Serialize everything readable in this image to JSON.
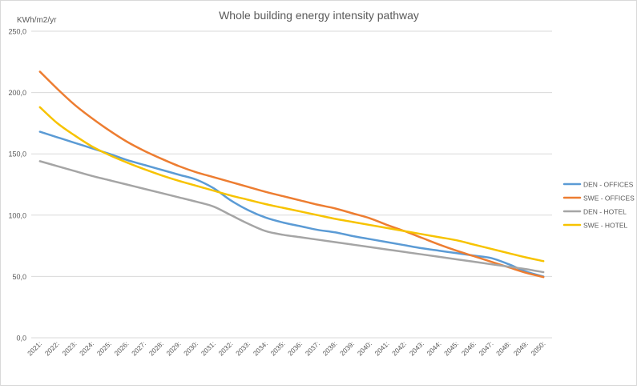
{
  "chart_data": {
    "type": "line",
    "title": "Whole building energy intensity pathway",
    "ylabel": "KWh/m2/yr",
    "xlabel": "",
    "ylim": [
      0,
      250
    ],
    "y_ticks": [
      "0,0",
      "50,0",
      "100,0",
      "150,0",
      "200,0",
      "250,0"
    ],
    "y_tick_values": [
      0,
      50,
      100,
      150,
      200,
      250
    ],
    "grid": true,
    "legend_position": "right",
    "categories": [
      "2021:",
      "2022:",
      "2023:",
      "2024:",
      "2025:",
      "2026:",
      "2027:",
      "2028:",
      "2029:",
      "2030:",
      "2031:",
      "2032:",
      "2033:",
      "2034:",
      "2035:",
      "2036:",
      "2037:",
      "2038:",
      "2039:",
      "2040:",
      "2041:",
      "2042:",
      "2043:",
      "2044:",
      "2045:",
      "2046:",
      "2047:",
      "2048:",
      "2049:",
      "2050:"
    ],
    "series": [
      {
        "name": "DEN - OFFICES",
        "color": "#5B9BD5",
        "values": [
          168,
          163.5,
          159,
          154.5,
          150,
          145,
          141,
          137,
          133,
          129,
          122,
          112,
          104,
          98,
          94,
          91,
          88,
          86,
          83,
          80.5,
          78,
          75.5,
          73,
          71,
          69,
          67,
          65,
          60,
          54,
          50
        ]
      },
      {
        "name": "SWE - OFFICES",
        "color": "#ED7D31",
        "values": [
          217,
          203,
          190,
          179,
          169,
          160,
          152.5,
          146,
          140,
          135,
          131,
          127,
          123,
          119,
          115.5,
          112,
          108.5,
          105.5,
          101.5,
          97.5,
          92,
          87,
          81.5,
          76,
          71,
          66.5,
          62,
          57.5,
          53,
          49.5
        ]
      },
      {
        "name": "DEN - HOTEL",
        "color": "#A5A5A5",
        "values": [
          144,
          140,
          136,
          132,
          128.5,
          125,
          121.5,
          118,
          114.5,
          111,
          107,
          100,
          93,
          87,
          84,
          82,
          80,
          78,
          76,
          74,
          72,
          70,
          68,
          66,
          64,
          62,
          60,
          58,
          56,
          53.5
        ]
      },
      {
        "name": "SWE - HOTEL",
        "color": "#F7C300",
        "values": [
          188,
          175,
          165,
          156,
          149,
          143,
          137.5,
          132.5,
          128,
          124,
          120,
          116,
          112.5,
          109,
          106,
          103,
          100,
          97,
          94.5,
          92,
          89.5,
          87,
          84.5,
          82,
          79.5,
          76,
          72.5,
          69,
          65.5,
          62.5
        ]
      }
    ]
  }
}
